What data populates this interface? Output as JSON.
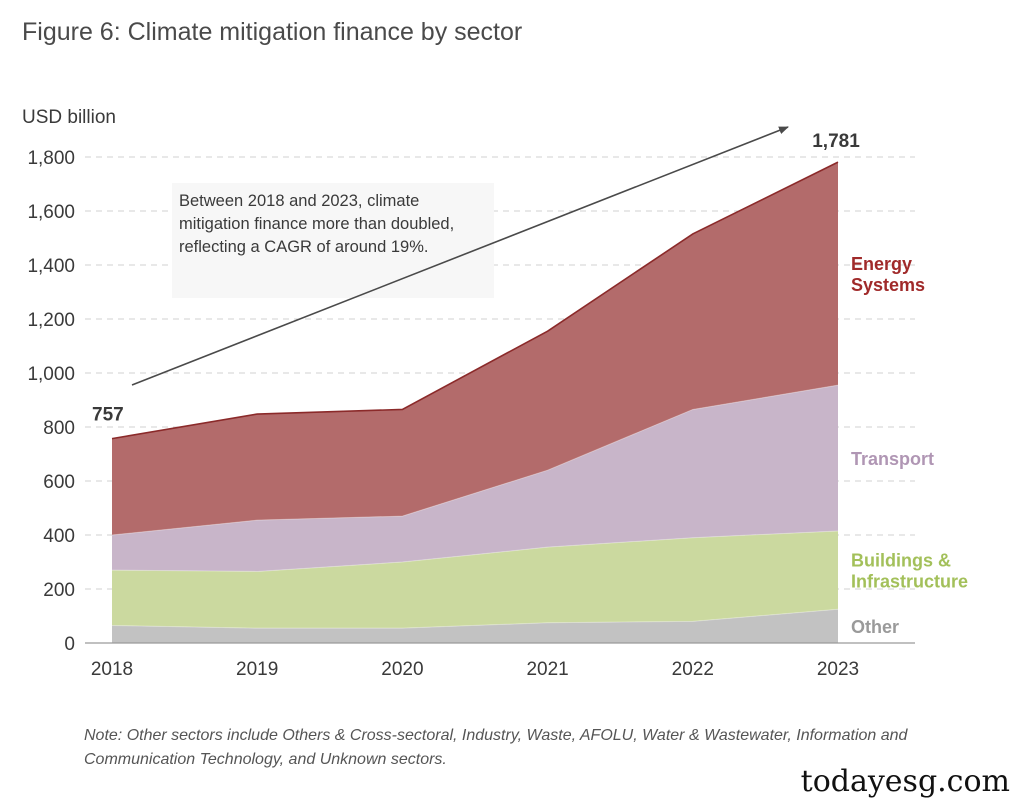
{
  "page": {
    "title": "Figure 6: Climate mitigation finance by sector",
    "note": "Note: Other sectors include Others & Cross-sectoral, Industry, Waste, AFOLU, Water & Wastewater, Information and Communication Technology, and Unknown sectors.",
    "watermark": "todayesg.com"
  },
  "chart_data": {
    "type": "area",
    "stacked": true,
    "title": "Figure 6: Climate mitigation finance by sector",
    "ylabel": "USD billion",
    "xlabel": "",
    "categories": [
      "2018",
      "2019",
      "2020",
      "2021",
      "2022",
      "2023"
    ],
    "ylim": [
      0,
      1800
    ],
    "yticks": [
      0,
      200,
      400,
      600,
      800,
      1000,
      1200,
      1400,
      1600,
      1800
    ],
    "yticks_labels": [
      "0",
      "200",
      "400",
      "600",
      "800",
      "1,000",
      "1,200",
      "1,400",
      "1,600",
      "1,800"
    ],
    "grid": "horizontal dashed",
    "series": [
      {
        "name": "Other",
        "label_lines": [
          "Other"
        ],
        "color": "#c2c2c2",
        "label_color": "#9a9a9a",
        "values": [
          65,
          55,
          55,
          75,
          80,
          125
        ]
      },
      {
        "name": "Buildings & Infrastructure",
        "label_lines": [
          "Buildings &",
          "Infrastructure"
        ],
        "color": "#cbd99f",
        "label_color": "#a3c05a",
        "values": [
          205,
          210,
          245,
          280,
          310,
          290
        ]
      },
      {
        "name": "Transport",
        "label_lines": [
          "Transport"
        ],
        "color": "#c8b5c9",
        "label_color": "#b096b4",
        "values": [
          130,
          190,
          170,
          285,
          475,
          540
        ]
      },
      {
        "name": "Energy Systems",
        "label_lines": [
          "Energy",
          "Systems"
        ],
        "color": "#b36b6b",
        "label_color": "#a02a2a",
        "values": [
          357,
          393,
          395,
          515,
          650,
          826
        ]
      }
    ],
    "totals": [
      757,
      848,
      865,
      1155,
      1515,
      1781
    ],
    "total_line_color": "#8b2a2a",
    "annotations": [
      {
        "label": "757",
        "year": "2018",
        "value": 757
      },
      {
        "label": "1,781",
        "year": "2023",
        "value": 1781
      },
      {
        "text_lines": [
          "Between 2018 and 2023, climate",
          "mitigation finance more than doubled,",
          "reflecting a CAGR of around 19%."
        ]
      }
    ]
  }
}
